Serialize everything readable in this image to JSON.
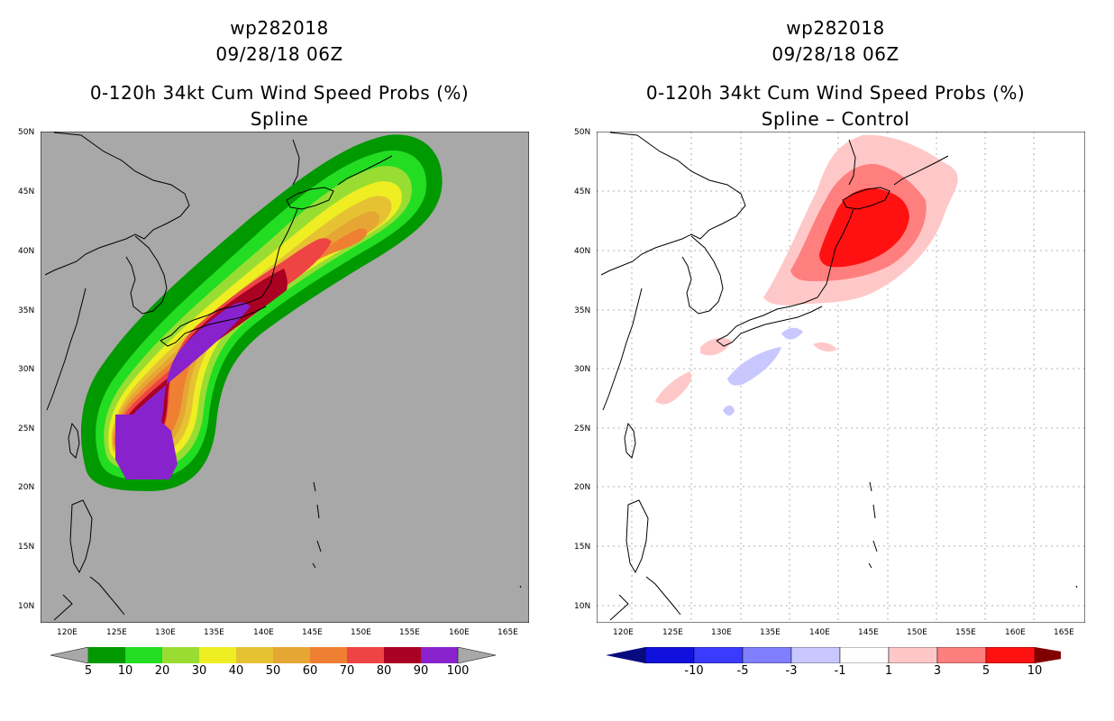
{
  "left_panel": {
    "title_line1": "wp282018",
    "title_line2": "09/28/18 06Z",
    "title_line3": "0-120h 34kt Cum Wind Speed Probs (%)",
    "title_line4": "Spline",
    "background_color": "#a8a8a8",
    "colorbar": {
      "colors": [
        "#009900",
        "#22dd22",
        "#99dd33",
        "#eeee22",
        "#e6c233",
        "#e6a633",
        "#ee7f33",
        "#ee4444",
        "#aa0022",
        "#8822cc"
      ],
      "labels": [
        "5",
        "10",
        "20",
        "30",
        "40",
        "50",
        "60",
        "70",
        "80",
        "90",
        "100"
      ],
      "end_color": "#a8a8a8"
    }
  },
  "right_panel": {
    "title_line1": "wp282018",
    "title_line2": "09/28/18 06Z",
    "title_line3": "0-120h 34kt Cum Wind Speed Probs (%)",
    "title_line4": "Spline – Control",
    "background_color": "#ffffff",
    "colorbar": {
      "colors": [
        "#1111dd",
        "#3b3bff",
        "#7f7fff",
        "#c8c8ff",
        "#ffffff",
        "#ffc8c8",
        "#ff7f7f",
        "#ff1111"
      ],
      "labels": [
        "-10",
        "-5",
        "-3",
        "-1",
        "1",
        "3",
        "5",
        "10"
      ],
      "low_end_color": "#0a0a80",
      "high_end_color": "#800000"
    }
  },
  "axes": {
    "lat_labels": [
      "50N",
      "45N",
      "40N",
      "35N",
      "30N",
      "25N",
      "20N",
      "15N",
      "10N"
    ],
    "lon_labels": [
      "120E",
      "125E",
      "130E",
      "135E",
      "140E",
      "145E",
      "150E",
      "155E",
      "160E",
      "165E"
    ]
  }
}
